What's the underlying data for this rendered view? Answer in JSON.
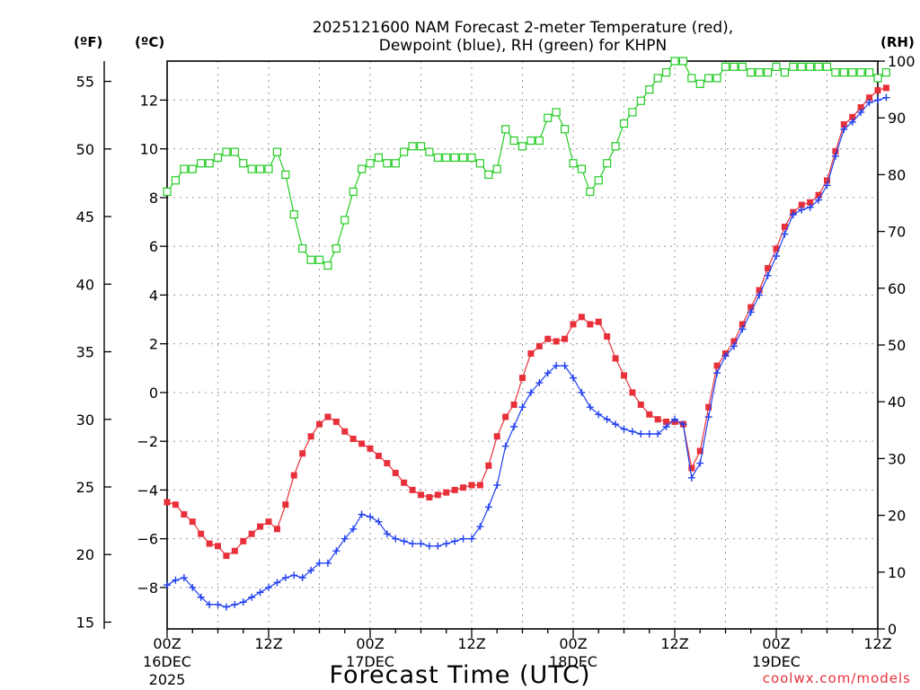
{
  "chart_data": {
    "type": "line",
    "title_line1": "2025121600 NAM Forecast 2-meter Temperature (red),",
    "title_line2": "Dewpoint (blue), RH (green) for KHPN",
    "xlabel": "Forecast Time (UTC)",
    "credit": "coolwx.com/models",
    "unit_f": "(ºF)",
    "unit_c": "(ºC)",
    "unit_rh": "(RH)",
    "x_range_hours": [
      0,
      84
    ],
    "y_range_c": [
      -9.7,
      13.6
    ],
    "y_range_rh": [
      0,
      100
    ],
    "y_range_f": [
      14.5,
      56.5
    ],
    "x_ticks": [
      {
        "hour": 0,
        "label": "00Z",
        "sub1": "16DEC",
        "sub2": "2025"
      },
      {
        "hour": 12,
        "label": "12Z",
        "sub1": "",
        "sub2": ""
      },
      {
        "hour": 24,
        "label": "00Z",
        "sub1": "17DEC",
        "sub2": ""
      },
      {
        "hour": 36,
        "label": "12Z",
        "sub1": "",
        "sub2": ""
      },
      {
        "hour": 48,
        "label": "00Z",
        "sub1": "18DEC",
        "sub2": ""
      },
      {
        "hour": 60,
        "label": "12Z",
        "sub1": "",
        "sub2": ""
      },
      {
        "hour": 72,
        "label": "00Z",
        "sub1": "19DEC",
        "sub2": ""
      },
      {
        "hour": 84,
        "label": "12Z",
        "sub1": "",
        "sub2": ""
      }
    ],
    "c_ticks": [
      -8,
      -6,
      -4,
      -2,
      0,
      2,
      4,
      6,
      8,
      10,
      12
    ],
    "c_tick_labels": [
      "−8",
      "−6",
      "−4",
      "−2",
      "0",
      "2",
      "4",
      "6",
      "8",
      "10",
      "12"
    ],
    "f_ticks": [
      15,
      20,
      25,
      30,
      35,
      40,
      45,
      50,
      55
    ],
    "rh_ticks": [
      0,
      10,
      20,
      30,
      40,
      50,
      60,
      70,
      80,
      90,
      100
    ],
    "series": [
      {
        "name": "Temperature",
        "color": "#e8303a",
        "marker": "filled-square",
        "values": [
          -4.5,
          -4.6,
          -5.0,
          -5.3,
          -5.8,
          -6.2,
          -6.3,
          -6.7,
          -6.5,
          -6.1,
          -5.8,
          -5.5,
          -5.3,
          -5.6,
          -4.6,
          -3.4,
          -2.5,
          -1.8,
          -1.3,
          -1.0,
          -1.2,
          -1.6,
          -1.9,
          -2.1,
          -2.3,
          -2.6,
          -2.9,
          -3.3,
          -3.7,
          -4.0,
          -4.2,
          -4.3,
          -4.2,
          -4.1,
          -4.0,
          -3.9,
          -3.8,
          -3.8,
          -3.0,
          -1.8,
          -1.0,
          -0.5,
          0.6,
          1.6,
          1.9,
          2.2,
          2.1,
          2.2,
          2.8,
          3.1,
          2.8,
          2.9,
          2.3,
          1.4,
          0.7,
          0.0,
          -0.5,
          -0.9,
          -1.1,
          -1.2,
          -1.2,
          -1.3,
          -3.1,
          -2.4,
          -0.6,
          1.1,
          1.6,
          2.1,
          2.8,
          3.5,
          4.2,
          5.1,
          5.9,
          6.8,
          7.4,
          7.7,
          7.8,
          8.1,
          8.7,
          9.9,
          11.0,
          11.3,
          11.7,
          12.1,
          12.4,
          12.5
        ]
      },
      {
        "name": "Dewpoint",
        "color": "#1f3ff0",
        "marker": "plus",
        "values": [
          -7.9,
          -7.7,
          -7.6,
          -8.0,
          -8.4,
          -8.7,
          -8.7,
          -8.8,
          -8.7,
          -8.6,
          -8.4,
          -8.2,
          -8.0,
          -7.8,
          -7.6,
          -7.5,
          -7.6,
          -7.3,
          -7.0,
          -7.0,
          -6.5,
          -6.0,
          -5.6,
          -5.0,
          -5.1,
          -5.3,
          -5.8,
          -6.0,
          -6.1,
          -6.2,
          -6.2,
          -6.3,
          -6.3,
          -6.2,
          -6.1,
          -6.0,
          -6.0,
          -5.5,
          -4.7,
          -3.8,
          -2.2,
          -1.4,
          -0.6,
          0.0,
          0.4,
          0.8,
          1.1,
          1.1,
          0.6,
          0.0,
          -0.6,
          -0.9,
          -1.1,
          -1.3,
          -1.5,
          -1.6,
          -1.7,
          -1.7,
          -1.7,
          -1.4,
          -1.1,
          -1.3,
          -3.5,
          -2.9,
          -1.0,
          0.8,
          1.5,
          1.9,
          2.6,
          3.3,
          4.0,
          4.8,
          5.6,
          6.5,
          7.3,
          7.5,
          7.6,
          7.9,
          8.5,
          9.7,
          10.8,
          11.1,
          11.5,
          11.9,
          12.0,
          12.1
        ]
      },
      {
        "name": "RH",
        "color": "#22cc22",
        "marker": "open-square",
        "values": [
          77,
          79,
          81,
          81,
          82,
          82,
          83,
          84,
          84,
          82,
          81,
          81,
          81,
          84,
          80,
          73,
          67,
          65,
          65,
          64,
          67,
          72,
          77,
          81,
          82,
          83,
          82,
          82,
          84,
          85,
          85,
          84,
          83,
          83,
          83,
          83,
          83,
          82,
          80,
          81,
          88,
          86,
          85,
          86,
          86,
          90,
          91,
          88,
          82,
          81,
          77,
          79,
          82,
          85,
          89,
          91,
          93,
          95,
          97,
          98,
          100,
          100,
          97,
          96,
          97,
          97,
          99,
          99,
          99,
          98,
          98,
          98,
          99,
          98,
          99,
          99,
          99,
          99,
          99,
          98,
          98,
          98,
          98,
          98,
          97,
          98
        ]
      }
    ]
  }
}
